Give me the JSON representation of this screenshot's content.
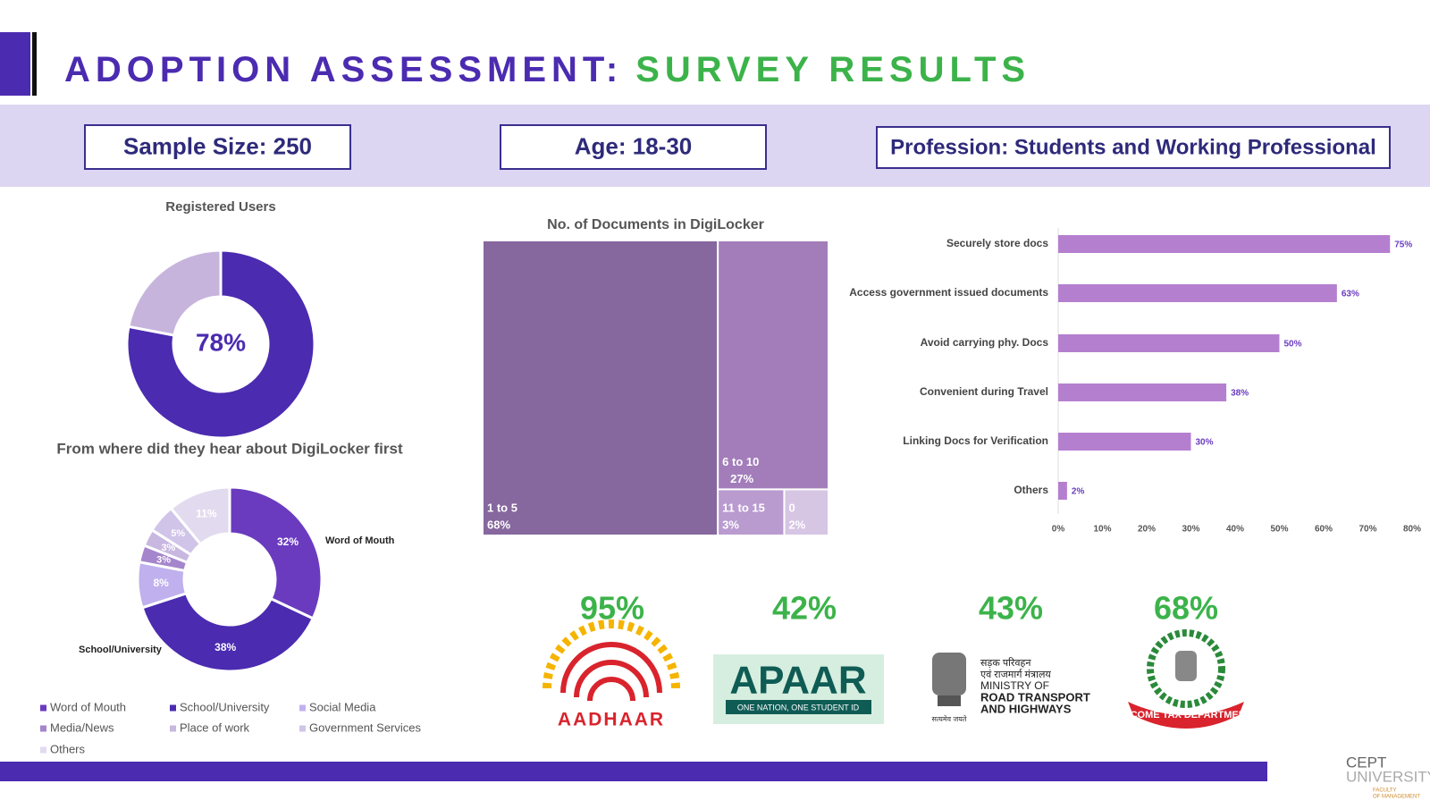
{
  "header": {
    "title_part1": "ADOPTION ASSESSMENT:",
    "title_part2": "SURVEY RESULTS"
  },
  "info_boxes": [
    "Sample Size: 250",
    "Age: 18-30",
    "Profession: Students and Working Professional"
  ],
  "chart_data": [
    {
      "type": "donut",
      "title": "Registered Users",
      "values": [
        78,
        22
      ],
      "value_labels": [
        "78%",
        null
      ],
      "colors": [
        "#4b2bb0",
        "#c7b4dc"
      ]
    },
    {
      "type": "donut",
      "title": "From where did they hear about DigiLocker first",
      "categories": [
        "Word of Mouth",
        "School/University",
        "Social Media",
        "Media/News",
        "Place of work",
        "Government Services",
        "Others"
      ],
      "values": [
        32,
        38,
        8,
        3,
        3,
        5,
        11
      ],
      "value_labels": [
        "32%",
        "38%",
        "8%",
        "3%",
        "3%",
        "5%",
        "11%"
      ],
      "colors": [
        "#6a3bbf",
        "#4b2bb0",
        "#c0b0ee",
        "#a585cc",
        "#c8b8e0",
        "#d0c4e8",
        "#e2dbef"
      ],
      "legend": "bottom"
    },
    {
      "type": "treemap",
      "title": "No. of Documents in DigiLocker",
      "categories": [
        "1 to 5",
        "6 to 10",
        "11 to 15",
        "0"
      ],
      "values": [
        68,
        27,
        3,
        2
      ],
      "value_labels": [
        "68%",
        "27%",
        "3%",
        "2%"
      ],
      "colors": [
        "#86679e",
        "#a27dba",
        "#b99bd0",
        "#d7c5e4"
      ]
    },
    {
      "type": "hbar",
      "categories": [
        "Securely store docs",
        "Access government issued documents",
        "Avoid carrying phy. Docs",
        "Convenient during Travel",
        "Linking Docs for Verification",
        "Others"
      ],
      "values": [
        75,
        63,
        50,
        38,
        30,
        2
      ],
      "value_labels": [
        "75%",
        "63%",
        "50%",
        "38%",
        "30%",
        "2%"
      ],
      "color": "#b57fd0",
      "xlim": [
        0,
        80
      ],
      "xticks": [
        {
          "value": 0,
          "label": "0%"
        },
        {
          "value": 10,
          "label": "10%"
        },
        {
          "value": 20,
          "label": "20%"
        },
        {
          "value": 30,
          "label": "30%"
        },
        {
          "value": 40,
          "label": "40%"
        },
        {
          "value": 50,
          "label": "50%"
        },
        {
          "value": 60,
          "label": "60%"
        },
        {
          "value": 70,
          "label": "70%"
        },
        {
          "value": 80,
          "label": "80%"
        }
      ]
    }
  ],
  "stats": [
    "95%",
    "42%",
    "43%",
    "68%"
  ],
  "logos": {
    "aadhaar": "AADHAAR",
    "apaar": {
      "name": "APAAR",
      "tagline": "ONE NATION, ONE STUDENT ID"
    },
    "morth": {
      "hindi_1": "सड़क परिवहन",
      "hindi_2": "एवं राजमार्ग मंत्रालय",
      "line_1": "MINISTRY OF",
      "line_2": "ROAD TRANSPORT",
      "line_3": "AND HIGHWAYS",
      "motto": "सत्यमेव जयते"
    },
    "income_tax": "INCOME TAX DEPARTMENT"
  },
  "footer": {
    "brand_1": "CEPT",
    "brand_2": "UNIVERSITY",
    "faculty_1": "FACULTY",
    "faculty_2": "OF MANAGEMENT"
  }
}
